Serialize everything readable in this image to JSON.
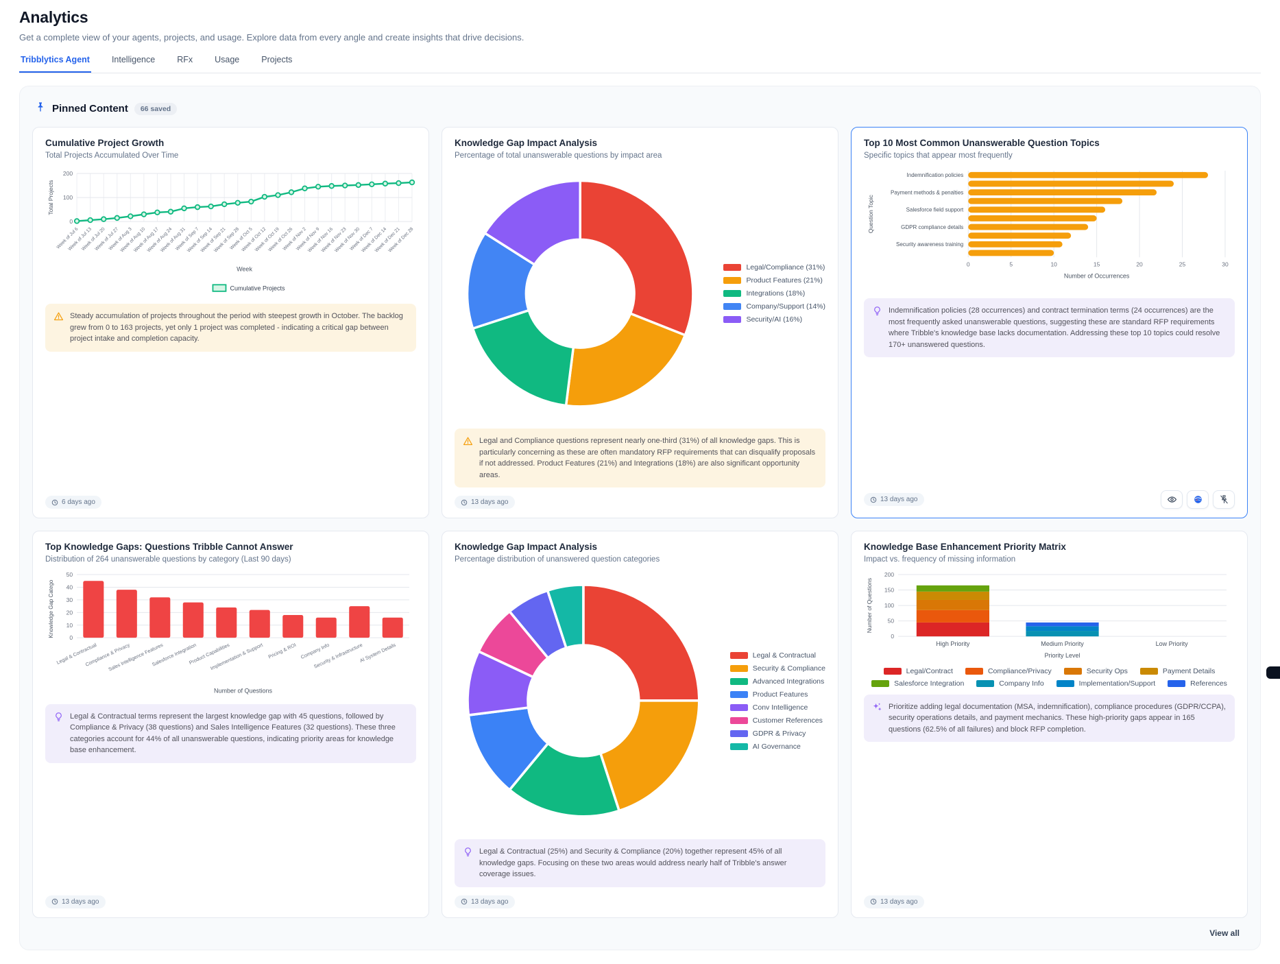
{
  "header": {
    "title": "Analytics",
    "subtitle": "Get a complete view of your agents, projects, and usage. Explore data from every angle and create insights that drive decisions."
  },
  "tabs": [
    {
      "label": "Tribblytics Agent",
      "active": true
    },
    {
      "label": "Intelligence",
      "active": false
    },
    {
      "label": "RFx",
      "active": false
    },
    {
      "label": "Usage",
      "active": false
    },
    {
      "label": "Projects",
      "active": false
    }
  ],
  "pinned": {
    "title": "Pinned Content",
    "badge": "66 saved",
    "view_all": "View all",
    "pin_icon": "pin-icon"
  },
  "cards": [
    {
      "title": "Cumulative Project Growth",
      "subtitle": "Total Projects Accumulated Over Time",
      "insight": {
        "icon": "warning-icon",
        "tone": "amber",
        "text": "Steady accumulation of projects throughout the period with steepest growth in October. The backlog grew from 0 to 163 projects, yet only 1 project was completed - indicating a critical gap between project intake and completion capacity."
      },
      "timestamp": "6 days ago"
    },
    {
      "title": "Knowledge Gap Impact Analysis",
      "subtitle": "Percentage of total unanswerable questions by impact area",
      "insight": {
        "icon": "warning-icon",
        "tone": "amber",
        "text": "Legal and Compliance questions represent nearly one-third (31%) of all knowledge gaps. This is particularly concerning as these are often mandatory RFP requirements that can disqualify proposals if not addressed. Product Features (21%) and Integrations (18%) are also significant opportunity areas."
      },
      "timestamp": "13 days ago"
    },
    {
      "title": "Top 10 Most Common Unanswerable Question Topics",
      "subtitle": "Specific topics that appear most frequently",
      "insight": {
        "icon": "lightbulb-icon",
        "tone": "purple",
        "text": "Indemnification policies (28 occurrences) and contract termination terms (24 occurrences) are the most frequently asked unanswerable questions, suggesting these are standard RFP requirements where Tribble's knowledge base lacks documentation. Addressing these top 10 topics could resolve 170+ unanswered questions."
      },
      "timestamp": "13 days ago",
      "selected": true,
      "actions": [
        "eye-icon",
        "color-wheel-icon",
        "unpin-icon"
      ]
    },
    {
      "title": "Top Knowledge Gaps: Questions Tribble Cannot Answer",
      "subtitle": "Distribution of 264 unanswerable questions by category (Last 90 days)",
      "insight": {
        "icon": "lightbulb-icon",
        "tone": "purple",
        "text": "Legal & Contractual terms represent the largest knowledge gap with 45 questions, followed by Compliance & Privacy (38 questions) and Sales Intelligence Features (32 questions). These three categories account for 44% of all unanswerable questions, indicating priority areas for knowledge base enhancement."
      },
      "timestamp": "13 days ago"
    },
    {
      "title": "Knowledge Gap Impact Analysis",
      "subtitle": "Percentage distribution of unanswered question categories",
      "insight": {
        "icon": "lightbulb-icon",
        "tone": "purple",
        "text": "Legal & Contractual (25%) and Security & Compliance (20%) together represent 45% of all knowledge gaps. Focusing on these two areas would address nearly half of Tribble's answer coverage issues."
      },
      "timestamp": "13 days ago"
    },
    {
      "title": "Knowledge Base Enhancement Priority Matrix",
      "subtitle": "Impact vs. frequency of missing information",
      "insight": {
        "icon": "sparkles-icon",
        "tone": "purple",
        "text": "Prioritize adding legal documentation (MSA, indemnification), compliance procedures (GDPR/CCPA), security operations details, and payment mechanics. These high-priority gaps appear in 165 questions (62.5% of all failures) and block RFP completion."
      },
      "timestamp": "13 days ago"
    }
  ],
  "chart_data": [
    {
      "type": "line",
      "x": [
        "Week of Jul 6",
        "Week of Jul 13",
        "Week of Jul 20",
        "Week of Jul 27",
        "Week of Aug 3",
        "Week of Aug 10",
        "Week of Aug 17",
        "Week of Aug 24",
        "Week of Aug 31",
        "Week of Sep 7",
        "Week of Sep 14",
        "Week of Sep 21",
        "Week of Sep 28",
        "Week of Oct 5",
        "Week of Oct 12",
        "Week of Oct 19",
        "Week of Oct 26",
        "Week of Nov 2",
        "Week of Nov 9",
        "Week of Nov 16",
        "Week of Nov 23",
        "Week of Nov 30",
        "Week of Dec 7",
        "Week of Dec 14",
        "Week of Dec 21",
        "Week of Dec 28"
      ],
      "series": [
        {
          "name": "Cumulative Projects",
          "values": [
            2,
            6,
            10,
            15,
            22,
            30,
            38,
            41,
            55,
            60,
            63,
            72,
            78,
            83,
            103,
            110,
            122,
            138,
            145,
            148,
            150,
            152,
            155,
            158,
            160,
            163
          ],
          "color": "#10b981",
          "marker_fill": "#d7f5e6"
        }
      ],
      "xlabel": "Week",
      "ylabel": "Total Projects",
      "ylim": [
        0,
        200
      ],
      "yticks": [
        0,
        100,
        200
      ],
      "grid": true,
      "legend_position": "bottom"
    },
    {
      "type": "pie",
      "donut": true,
      "labels": [
        "Legal/Compliance (31%)",
        "Product Features (21%)",
        "Integrations (18%)",
        "Company/Support (14%)",
        "Security/AI (16%)"
      ],
      "values": [
        31,
        21,
        18,
        14,
        16
      ],
      "colors": [
        "#ea4335",
        "#f59e0b",
        "#10b981",
        "#4285f4",
        "#8b5cf6"
      ],
      "legend_position": "right"
    },
    {
      "type": "bar",
      "orientation": "horizontal",
      "categories": [
        "Indemnification policies",
        "",
        "Payment methods & penalties",
        "",
        "Salesforce field support",
        "",
        "GDPR compliance details",
        "",
        "Security awareness training",
        ""
      ],
      "values": [
        28,
        24,
        22,
        18,
        16,
        15,
        14,
        12,
        11,
        10
      ],
      "color": "#f59e0b",
      "xlabel": "Number of Occurrences",
      "ylabel": "Question Topic",
      "xlim": [
        0,
        30
      ],
      "xticks": [
        0,
        5,
        10,
        15,
        20,
        25,
        30
      ],
      "grid": true
    },
    {
      "type": "bar",
      "orientation": "vertical",
      "categories": [
        "Legal & Contractual",
        "Compliance & Privacy",
        "Sales Intelligence Features",
        "Salesforce Integration",
        "Product Capabilities",
        "Implementation & Support",
        "Pricing & ROI",
        "Company Info",
        "Security & Infrastructure",
        "AI System Details"
      ],
      "values": [
        45,
        38,
        32,
        28,
        24,
        22,
        18,
        16,
        25,
        16
      ],
      "color": "#ef4444",
      "xlabel": "Number of Questions",
      "ylabel": "Knowledge Gap Catego",
      "ylim": [
        0,
        50
      ],
      "yticks": [
        0,
        10,
        20,
        30,
        40,
        50
      ],
      "grid": true
    },
    {
      "type": "pie",
      "donut": true,
      "labels": [
        "Legal & Contractual",
        "Security & Compliance",
        "Advanced Integrations",
        "Product Features",
        "Conv Intelligence",
        "Customer References",
        "GDPR & Privacy",
        "AI Governance"
      ],
      "values": [
        25,
        20,
        16,
        12,
        9,
        7,
        6,
        5
      ],
      "colors": [
        "#ea4335",
        "#f59e0b",
        "#10b981",
        "#3b82f6",
        "#8b5cf6",
        "#ec4899",
        "#6366f1",
        "#14b8a6"
      ],
      "legend_position": "right"
    },
    {
      "type": "bar",
      "stacked": true,
      "categories": [
        "High Priority",
        "Medium Priority",
        "Low Priority"
      ],
      "series": [
        {
          "name": "Legal/Contract",
          "color": "#dc2626",
          "values": [
            45,
            0,
            0
          ]
        },
        {
          "name": "Compliance/Privacy",
          "color": "#ea580c",
          "values": [
            40,
            0,
            0
          ]
        },
        {
          "name": "Security Ops",
          "color": "#d97706",
          "values": [
            33,
            0,
            0
          ]
        },
        {
          "name": "Payment Details",
          "color": "#ca8a04",
          "values": [
            27,
            0,
            0
          ]
        },
        {
          "name": "Salesforce Integration",
          "color": "#65a30d",
          "values": [
            20,
            0,
            0
          ]
        },
        {
          "name": "Company Info",
          "color": "#0891b2",
          "values": [
            0,
            18,
            0
          ]
        },
        {
          "name": "Implementation/Support",
          "color": "#0284c7",
          "values": [
            0,
            15,
            0
          ]
        },
        {
          "name": "References",
          "color": "#2563eb",
          "values": [
            0,
            12,
            0
          ]
        }
      ],
      "xlabel": "Priority Level",
      "ylabel": "Number of Questions",
      "ylim": [
        0,
        200
      ],
      "yticks": [
        0,
        50,
        100,
        150,
        200
      ],
      "grid": true,
      "legend_position": "bottom"
    }
  ]
}
